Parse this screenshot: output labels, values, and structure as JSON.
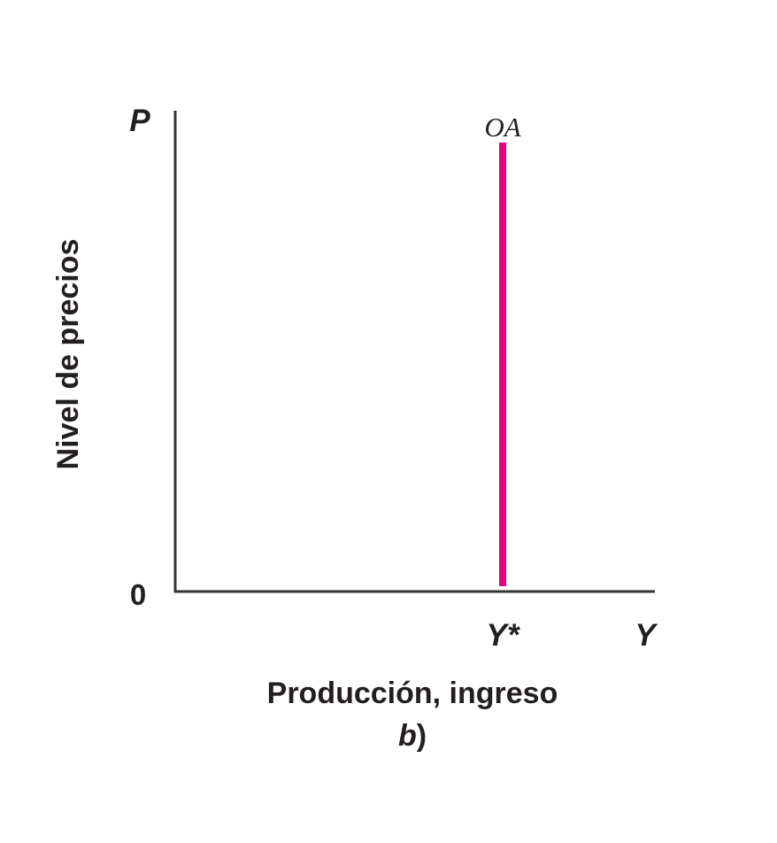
{
  "diagram": {
    "y_axis_symbol": "P",
    "x_axis_symbol": "Y",
    "origin_label": "0",
    "y_axis_title": "Nivel de precios",
    "x_axis_title": "Producción, ingreso",
    "panel_letter": "b",
    "panel_paren": ")",
    "curve": {
      "label": "OA",
      "color": "#e6007e",
      "position_label": "Y*"
    }
  }
}
